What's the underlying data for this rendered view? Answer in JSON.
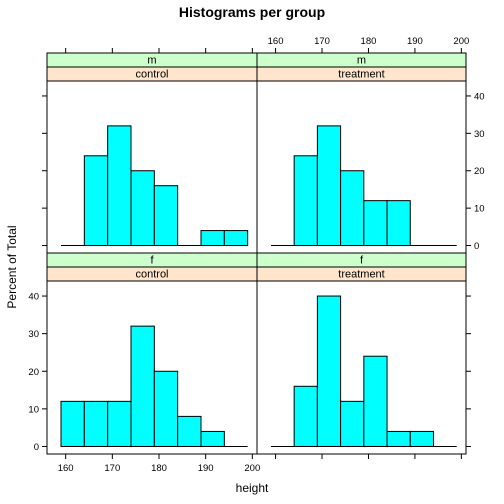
{
  "chart_data": {
    "type": "bar",
    "title": "Histograms per group",
    "xlabel": "height",
    "ylabel": "Percent of Total",
    "xlim": [
      156,
      201
    ],
    "ylim": [
      -2,
      44
    ],
    "x_ticks": [
      160,
      170,
      180,
      190,
      200
    ],
    "y_ticks": [
      0,
      10,
      20,
      30,
      40
    ],
    "fill_color": "#00ffff",
    "strip_outer_color": "#ccffcc",
    "strip_inner_color": "#ffe5cc",
    "panels": [
      {
        "sex": "m",
        "group": "control",
        "row": 0,
        "col": 0,
        "baseline": [
          159,
          199
        ],
        "bins": [
          {
            "x0": 164,
            "x1": 169,
            "value": 24
          },
          {
            "x0": 169,
            "x1": 174,
            "value": 32
          },
          {
            "x0": 174,
            "x1": 179,
            "value": 20
          },
          {
            "x0": 179,
            "x1": 184,
            "value": 16
          },
          {
            "x0": 189,
            "x1": 194,
            "value": 4
          },
          {
            "x0": 194,
            "x1": 199,
            "value": 4
          }
        ]
      },
      {
        "sex": "m",
        "group": "treatment",
        "row": 0,
        "col": 1,
        "baseline": [
          159,
          199
        ],
        "bins": [
          {
            "x0": 164,
            "x1": 169,
            "value": 24
          },
          {
            "x0": 169,
            "x1": 174,
            "value": 32
          },
          {
            "x0": 174,
            "x1": 179,
            "value": 20
          },
          {
            "x0": 179,
            "x1": 184,
            "value": 12
          },
          {
            "x0": 184,
            "x1": 189,
            "value": 12
          }
        ]
      },
      {
        "sex": "f",
        "group": "control",
        "row": 1,
        "col": 0,
        "baseline": [
          159,
          199
        ],
        "bins": [
          {
            "x0": 159,
            "x1": 164,
            "value": 12
          },
          {
            "x0": 164,
            "x1": 169,
            "value": 12
          },
          {
            "x0": 169,
            "x1": 174,
            "value": 12
          },
          {
            "x0": 174,
            "x1": 179,
            "value": 32
          },
          {
            "x0": 179,
            "x1": 184,
            "value": 20
          },
          {
            "x0": 184,
            "x1": 189,
            "value": 8
          },
          {
            "x0": 189,
            "x1": 194,
            "value": 4
          }
        ]
      },
      {
        "sex": "f",
        "group": "treatment",
        "row": 1,
        "col": 1,
        "baseline": [
          159,
          199
        ],
        "bins": [
          {
            "x0": 164,
            "x1": 169,
            "value": 16
          },
          {
            "x0": 169,
            "x1": 174,
            "value": 40
          },
          {
            "x0": 174,
            "x1": 179,
            "value": 12
          },
          {
            "x0": 179,
            "x1": 184,
            "value": 24
          },
          {
            "x0": 184,
            "x1": 189,
            "value": 4
          },
          {
            "x0": 189,
            "x1": 194,
            "value": 4
          }
        ]
      }
    ]
  }
}
